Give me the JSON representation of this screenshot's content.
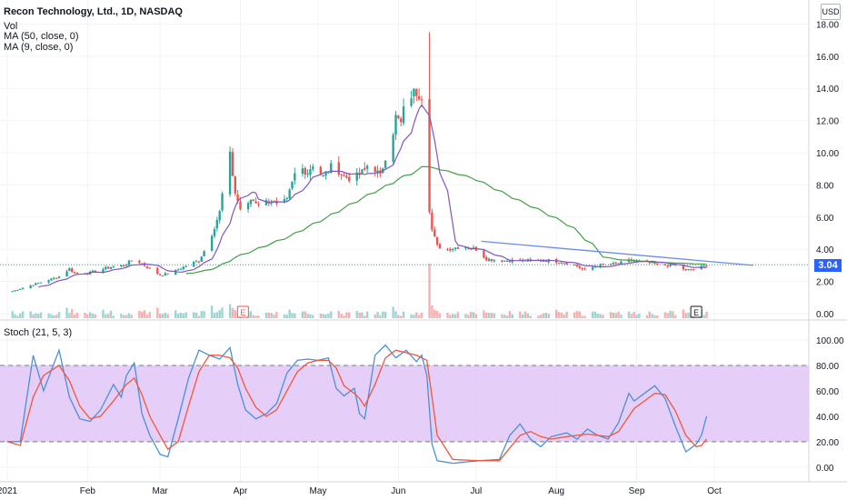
{
  "header": {
    "title": "Recon Technology, Ltd., 1D, NASDAQ",
    "vol_label": "Vol",
    "ma50_label": "MA (50, close, 0)",
    "ma9_label": "MA (9, close, 0)",
    "currency": "USD",
    "last_price": "3.04"
  },
  "stoch_label": "Stoch (21, 5, 3)",
  "colors": {
    "up": "#26a69a",
    "down": "#ef5350",
    "ma50": "#43a047",
    "ma9": "#7e57c2",
    "trendline": "#6d8ee8",
    "stoch_k": "#4a90d9",
    "stoch_d": "#f0573c",
    "stoch_band": "#e1c6f7",
    "price_badge": "#2962ff"
  },
  "chart_data": [
    {
      "type": "candlestick",
      "ylim": [
        0,
        18.5
      ],
      "y_ticks": [
        "18.00",
        "16.00",
        "14.00",
        "12.00",
        "10.00",
        "8.00",
        "6.00",
        "4.00",
        "2.00",
        "0.00"
      ],
      "y_tick_values": [
        18,
        16,
        14,
        12,
        10,
        8,
        6,
        4,
        2,
        0
      ],
      "x_tick_labels": [
        "2021",
        "Feb",
        "Mar",
        "Apr",
        "May",
        "Jun",
        "Jul",
        "Aug",
        "Sep",
        "Oct"
      ],
      "x_tick_days": [
        0,
        31,
        59,
        90,
        120,
        151,
        181,
        212,
        243,
        273
      ],
      "earnings_markers": [
        {
          "day": 91,
          "label": "E"
        },
        {
          "day": 266,
          "label": "E"
        }
      ],
      "last_price": 3.04,
      "anchors": [
        [
          0,
          1.3
        ],
        [
          10,
          1.8
        ],
        [
          20,
          2.3
        ],
        [
          24,
          2.8
        ],
        [
          26,
          2.5
        ],
        [
          31,
          2.5
        ],
        [
          40,
          2.9
        ],
        [
          45,
          3.0
        ],
        [
          49,
          3.4
        ],
        [
          53,
          3.0
        ],
        [
          59,
          2.4
        ],
        [
          63,
          2.5
        ],
        [
          68,
          2.9
        ],
        [
          74,
          3.3
        ],
        [
          78,
          4.5
        ],
        [
          82,
          6.3
        ],
        [
          84,
          8.5
        ],
        [
          86,
          9.8
        ],
        [
          88,
          7.5
        ],
        [
          91,
          6.0
        ],
        [
          94,
          7.1
        ],
        [
          98,
          6.8
        ],
        [
          102,
          7.1
        ],
        [
          104,
          6.7
        ],
        [
          108,
          7.0
        ],
        [
          112,
          9.2
        ],
        [
          116,
          8.8
        ],
        [
          118,
          9.3
        ],
        [
          122,
          8.5
        ],
        [
          126,
          9.3
        ],
        [
          130,
          8.5
        ],
        [
          134,
          8.4
        ],
        [
          138,
          8.9
        ],
        [
          140,
          9.5
        ],
        [
          144,
          8.5
        ],
        [
          146,
          9.8
        ],
        [
          148,
          10.5
        ],
        [
          150,
          12.2
        ],
        [
          152,
          11.8
        ],
        [
          154,
          13.4
        ],
        [
          158,
          13.8
        ],
        [
          160,
          13.6
        ],
        [
          162,
          13.0
        ],
        [
          163,
          6.5
        ],
        [
          164,
          5.2
        ],
        [
          166,
          4.2
        ],
        [
          170,
          4.0
        ],
        [
          176,
          4.2
        ],
        [
          181,
          4.0
        ],
        [
          185,
          3.4
        ],
        [
          190,
          3.3
        ],
        [
          200,
          3.3
        ],
        [
          210,
          3.3
        ],
        [
          218,
          3.1
        ],
        [
          223,
          2.7
        ],
        [
          228,
          3.0
        ],
        [
          236,
          3.1
        ],
        [
          240,
          3.3
        ],
        [
          246,
          3.2
        ],
        [
          252,
          3.0
        ],
        [
          258,
          3.0
        ],
        [
          262,
          2.7
        ],
        [
          266,
          2.8
        ],
        [
          270,
          3.0
        ]
      ],
      "volume_spike_day": 163,
      "trendline": {
        "from": {
          "day": 183,
          "price": 4.5
        },
        "to": {
          "day": 288,
          "price": 3.0
        }
      }
    },
    {
      "type": "line",
      "name": "Stoch (21, 5, 3)",
      "ylim": [
        -3,
        105
      ],
      "y_ticks": [
        "100.00",
        "80.00",
        "60.00",
        "40.00",
        "20.00",
        "0.00"
      ],
      "y_tick_values": [
        100,
        80,
        60,
        40,
        20,
        0
      ],
      "band": [
        20,
        80
      ],
      "k_anchors": [
        [
          0,
          20
        ],
        [
          5,
          20
        ],
        [
          10,
          88
        ],
        [
          14,
          60
        ],
        [
          20,
          92
        ],
        [
          24,
          55
        ],
        [
          28,
          38
        ],
        [
          32,
          36
        ],
        [
          36,
          45
        ],
        [
          41,
          65
        ],
        [
          44,
          55
        ],
        [
          46,
          72
        ],
        [
          49,
          82
        ],
        [
          52,
          42
        ],
        [
          55,
          25
        ],
        [
          59,
          10
        ],
        [
          62,
          8
        ],
        [
          66,
          38
        ],
        [
          70,
          70
        ],
        [
          74,
          92
        ],
        [
          78,
          88
        ],
        [
          82,
          85
        ],
        [
          86,
          94
        ],
        [
          89,
          65
        ],
        [
          92,
          45
        ],
        [
          96,
          38
        ],
        [
          100,
          42
        ],
        [
          104,
          50
        ],
        [
          108,
          74
        ],
        [
          112,
          84
        ],
        [
          116,
          85
        ],
        [
          120,
          84
        ],
        [
          124,
          86
        ],
        [
          127,
          62
        ],
        [
          130,
          56
        ],
        [
          134,
          62
        ],
        [
          136,
          42
        ],
        [
          138,
          38
        ],
        [
          142,
          88
        ],
        [
          146,
          96
        ],
        [
          150,
          86
        ],
        [
          154,
          92
        ],
        [
          158,
          83
        ],
        [
          160,
          88
        ],
        [
          162,
          72
        ],
        [
          164,
          18
        ],
        [
          166,
          5
        ],
        [
          172,
          3
        ],
        [
          182,
          5
        ],
        [
          190,
          6
        ],
        [
          194,
          25
        ],
        [
          198,
          34
        ],
        [
          202,
          22
        ],
        [
          206,
          16
        ],
        [
          210,
          24
        ],
        [
          216,
          27
        ],
        [
          220,
          22
        ],
        [
          224,
          30
        ],
        [
          228,
          25
        ],
        [
          232,
          22
        ],
        [
          236,
          35
        ],
        [
          240,
          58
        ],
        [
          242,
          52
        ],
        [
          246,
          58
        ],
        [
          250,
          64
        ],
        [
          254,
          54
        ],
        [
          258,
          32
        ],
        [
          262,
          12
        ],
        [
          266,
          18
        ],
        [
          268,
          25
        ],
        [
          270,
          40
        ]
      ],
      "d_anchors": [
        [
          0,
          20
        ],
        [
          5,
          17
        ],
        [
          10,
          55
        ],
        [
          14,
          72
        ],
        [
          20,
          80
        ],
        [
          24,
          68
        ],
        [
          28,
          48
        ],
        [
          32,
          38
        ],
        [
          36,
          40
        ],
        [
          41,
          52
        ],
        [
          44,
          60
        ],
        [
          46,
          65
        ],
        [
          49,
          70
        ],
        [
          52,
          57
        ],
        [
          55,
          40
        ],
        [
          59,
          25
        ],
        [
          62,
          14
        ],
        [
          66,
          20
        ],
        [
          70,
          48
        ],
        [
          74,
          75
        ],
        [
          78,
          88
        ],
        [
          82,
          88
        ],
        [
          86,
          86
        ],
        [
          89,
          78
        ],
        [
          92,
          62
        ],
        [
          96,
          47
        ],
        [
          100,
          40
        ],
        [
          104,
          45
        ],
        [
          108,
          60
        ],
        [
          112,
          75
        ],
        [
          116,
          82
        ],
        [
          120,
          84
        ],
        [
          124,
          84
        ],
        [
          127,
          78
        ],
        [
          130,
          64
        ],
        [
          134,
          58
        ],
        [
          136,
          54
        ],
        [
          138,
          48
        ],
        [
          142,
          65
        ],
        [
          146,
          86
        ],
        [
          150,
          92
        ],
        [
          154,
          90
        ],
        [
          158,
          88
        ],
        [
          160,
          86
        ],
        [
          162,
          84
        ],
        [
          164,
          55
        ],
        [
          166,
          25
        ],
        [
          172,
          6
        ],
        [
          182,
          5
        ],
        [
          190,
          5
        ],
        [
          194,
          15
        ],
        [
          198,
          25
        ],
        [
          202,
          28
        ],
        [
          206,
          24
        ],
        [
          210,
          22
        ],
        [
          216,
          24
        ],
        [
          220,
          25
        ],
        [
          224,
          26
        ],
        [
          228,
          25
        ],
        [
          232,
          24
        ],
        [
          236,
          28
        ],
        [
          240,
          40
        ],
        [
          242,
          46
        ],
        [
          246,
          52
        ],
        [
          250,
          58
        ],
        [
          254,
          57
        ],
        [
          258,
          44
        ],
        [
          262,
          25
        ],
        [
          266,
          16
        ],
        [
          268,
          17
        ],
        [
          270,
          22
        ]
      ]
    }
  ]
}
